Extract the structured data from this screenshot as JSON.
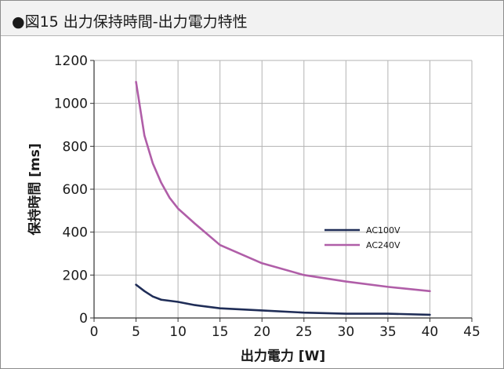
{
  "figure": {
    "title": "●図15 出力保持時間-出力電力特性"
  },
  "chart_data": {
    "type": "line",
    "xlabel": "出力電力 [W]",
    "ylabel": "保持時間 [ms]",
    "xlim": [
      0,
      45
    ],
    "ylim": [
      0,
      1200
    ],
    "xticks": [
      0,
      5,
      10,
      15,
      20,
      25,
      30,
      35,
      40,
      45
    ],
    "yticks": [
      0,
      200,
      400,
      600,
      800,
      1000,
      1200
    ],
    "grid": true,
    "legend_position": "center-right",
    "series": [
      {
        "name": "AC100V",
        "color": "#1f2d57",
        "x": [
          5,
          6,
          7,
          8,
          9,
          10,
          12,
          15,
          20,
          25,
          30,
          35,
          40
        ],
        "y": [
          155,
          125,
          100,
          85,
          80,
          75,
          60,
          45,
          35,
          25,
          20,
          20,
          15
        ]
      },
      {
        "name": "AC240V",
        "color": "#b05ea8",
        "x": [
          5,
          6,
          7,
          8,
          9,
          10,
          12,
          15,
          20,
          25,
          30,
          35,
          40
        ],
        "y": [
          1100,
          850,
          720,
          630,
          560,
          510,
          440,
          340,
          255,
          200,
          170,
          145,
          125
        ]
      }
    ]
  }
}
